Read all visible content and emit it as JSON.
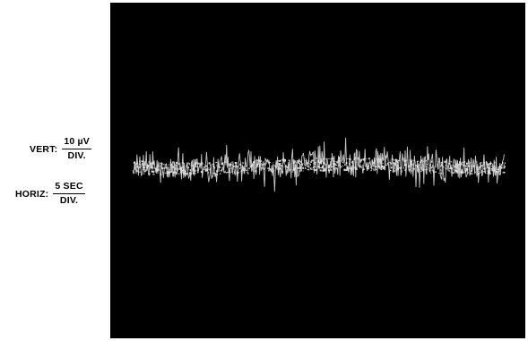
{
  "scale": {
    "vertical": {
      "label": "VERT:",
      "numerator": "10 µV",
      "denominator": "DIV."
    },
    "horizontal": {
      "label": "HORIZ:",
      "numerator": "5 SEC",
      "denominator": "DIV."
    }
  },
  "colors": {
    "screen": "#000000",
    "trace": "#e6e6e6"
  }
}
